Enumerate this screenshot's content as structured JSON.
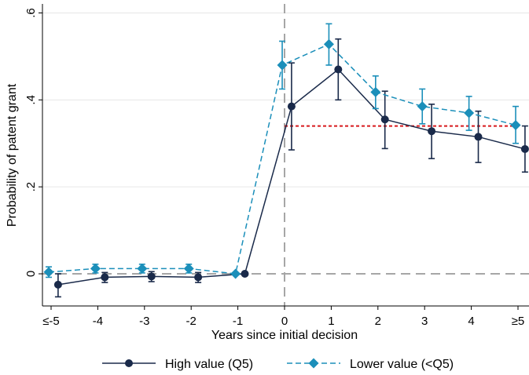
{
  "chart_data": {
    "type": "line",
    "xlabel": "Years since initial decision",
    "ylabel": "Probability of patent grant",
    "categories": [
      "≤-5",
      "-4",
      "-3",
      "-2",
      "-1",
      "0",
      "1",
      "2",
      "3",
      "4",
      "≥5"
    ],
    "category_values": [
      -5,
      -4,
      -3,
      -2,
      -1,
      0,
      1,
      2,
      3,
      4,
      5
    ],
    "yticks": [
      0,
      0.2,
      0.4,
      0.6
    ],
    "ytick_labels": [
      "0",
      ".2",
      ".4",
      ".6"
    ],
    "ylim": [
      -0.07,
      0.62
    ],
    "xlim": [
      -5.2,
      5.2
    ],
    "grid": "horizontal",
    "legend_position": "bottom",
    "reference_line": {
      "value": 0.34,
      "color": "#d7191c"
    },
    "series": [
      {
        "name": "High value (Q5)",
        "color": "#1a2a4a",
        "marker": "circle",
        "line": "solid",
        "x": [
          -4.85,
          -3.85,
          -2.85,
          -1.85,
          -0.85,
          0.15,
          1.15,
          2.15,
          3.15,
          4.15,
          5.15
        ],
        "values": [
          -0.025,
          -0.008,
          -0.006,
          -0.008,
          0.0,
          0.385,
          0.47,
          0.355,
          0.328,
          0.315,
          0.287
        ],
        "ci_low": [
          -0.053,
          -0.02,
          -0.018,
          -0.02,
          0.0,
          0.285,
          0.4,
          0.288,
          0.265,
          0.256,
          0.234
        ],
        "ci_high": [
          0.0,
          0.003,
          0.005,
          0.003,
          0.0,
          0.485,
          0.54,
          0.42,
          0.39,
          0.374,
          0.34
        ]
      },
      {
        "name": "Lower value (<Q5)",
        "color": "#1b8fba",
        "marker": "diamond",
        "line": "dashed",
        "x": [
          -5.05,
          -4.05,
          -3.05,
          -2.05,
          -1.05,
          -0.05,
          0.95,
          1.95,
          2.95,
          3.95,
          4.95
        ],
        "values": [
          0.004,
          0.012,
          0.012,
          0.012,
          0.0,
          0.48,
          0.528,
          0.418,
          0.385,
          0.37,
          0.342
        ],
        "ci_low": [
          -0.008,
          0.002,
          0.002,
          0.002,
          0.0,
          0.425,
          0.48,
          0.38,
          0.345,
          0.33,
          0.3
        ],
        "ci_high": [
          0.016,
          0.022,
          0.022,
          0.022,
          0.0,
          0.535,
          0.575,
          0.455,
          0.425,
          0.408,
          0.385
        ]
      }
    ]
  }
}
